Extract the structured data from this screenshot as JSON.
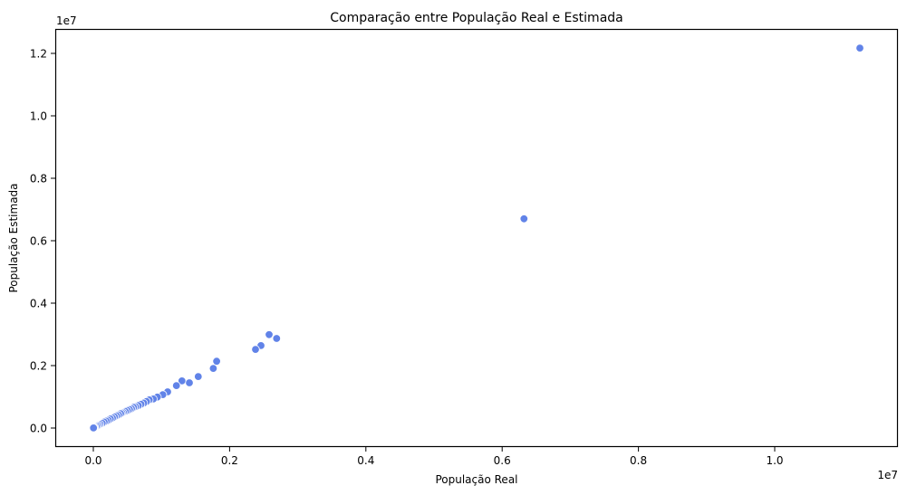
{
  "chart_data": {
    "type": "scatter",
    "title": "Comparação entre População Real e Estimada",
    "xlabel": "População Real",
    "ylabel": "População Estimada",
    "x_offset_label": "1e7",
    "y_offset_label": "1e7",
    "xlim": [
      -5600000,
      11800000
    ],
    "ylim": [
      -580000,
      12790000
    ],
    "x_ticks": [
      0.0,
      0.2,
      0.4,
      0.6,
      0.8,
      1.0
    ],
    "x_tick_labels": [
      "0.0",
      "0.2",
      "0.4",
      "0.6",
      "0.8",
      "1.0"
    ],
    "y_ticks": [
      0.0,
      0.2,
      0.4,
      0.6,
      0.8,
      1.0,
      1.2
    ],
    "y_tick_labels": [
      "0.0",
      "0.2",
      "0.4",
      "0.6",
      "0.8",
      "1.0",
      "1.2"
    ],
    "grid": false,
    "legend": null,
    "marker_color": "#6183e8",
    "marker_edge_color": "#ffffff",
    "points": [
      {
        "x": 11250000,
        "y": 12170000
      },
      {
        "x": 6320000,
        "y": 6700000
      },
      {
        "x": 2690000,
        "y": 2870000
      },
      {
        "x": 2580000,
        "y": 2990000
      },
      {
        "x": 2460000,
        "y": 2640000
      },
      {
        "x": 2380000,
        "y": 2520000
      },
      {
        "x": 1810000,
        "y": 2140000
      },
      {
        "x": 1760000,
        "y": 1910000
      },
      {
        "x": 1540000,
        "y": 1650000
      },
      {
        "x": 1410000,
        "y": 1450000
      },
      {
        "x": 1300000,
        "y": 1510000
      },
      {
        "x": 1220000,
        "y": 1360000
      },
      {
        "x": 1090000,
        "y": 1160000
      },
      {
        "x": 1020000,
        "y": 1070000
      },
      {
        "x": 940000,
        "y": 990000
      },
      {
        "x": 880000,
        "y": 930000
      },
      {
        "x": 820000,
        "y": 900000
      },
      {
        "x": 780000,
        "y": 850000
      },
      {
        "x": 740000,
        "y": 800000
      },
      {
        "x": 700000,
        "y": 760000
      },
      {
        "x": 660000,
        "y": 720000
      },
      {
        "x": 620000,
        "y": 680000
      },
      {
        "x": 590000,
        "y": 660000
      },
      {
        "x": 560000,
        "y": 620000
      },
      {
        "x": 530000,
        "y": 590000
      },
      {
        "x": 500000,
        "y": 560000
      },
      {
        "x": 470000,
        "y": 530000
      },
      {
        "x": 440000,
        "y": 500000
      },
      {
        "x": 420000,
        "y": 480000
      },
      {
        "x": 400000,
        "y": 460000
      },
      {
        "x": 370000,
        "y": 420000
      },
      {
        "x": 340000,
        "y": 390000
      },
      {
        "x": 310000,
        "y": 360000
      },
      {
        "x": 280000,
        "y": 320000
      },
      {
        "x": 250000,
        "y": 290000
      },
      {
        "x": 220000,
        "y": 250000
      },
      {
        "x": 190000,
        "y": 220000
      },
      {
        "x": 160000,
        "y": 190000
      },
      {
        "x": 130000,
        "y": 150000
      },
      {
        "x": 100000,
        "y": 120000
      },
      {
        "x": 80000,
        "y": 90000
      },
      {
        "x": 60000,
        "y": 70000
      },
      {
        "x": 40000,
        "y": 45000
      },
      {
        "x": 20000,
        "y": 25000
      },
      {
        "x": 10000,
        "y": 10000
      },
      {
        "x": 3000,
        "y": 3000
      }
    ]
  }
}
